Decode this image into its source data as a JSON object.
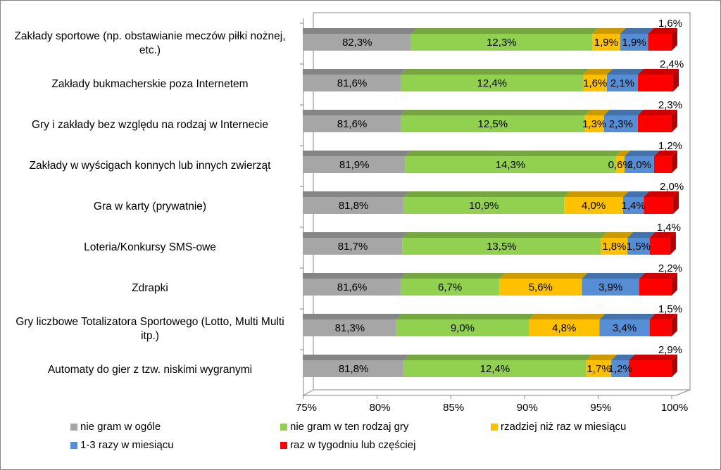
{
  "chart_data": {
    "type": "stacked-bar-horizontal-3d",
    "categories": [
      "Zakłady sportowe (np. obstawianie meczów piłki nożnej, etc.)",
      "Zakłady bukmacherskie poza Internetem",
      "Gry i zakłady bez względu na rodzaj w Internecie",
      "Zakłady w wyścigach konnych lub innych zwierząt",
      "Gra w karty (prywatnie)",
      "Loteria/Konkursy SMS-owe",
      "Zdrapki",
      "Gry liczbowe Totalizatora Sportowego (Lotto, Multi Multi itp.)",
      "Automaty do gier z tzw. niskimi wygranymi"
    ],
    "series": [
      {
        "name": "nie gram w ogóle",
        "color": "#a6a6a6",
        "values": [
          82.3,
          81.6,
          81.6,
          81.9,
          81.8,
          81.7,
          81.6,
          81.3,
          81.8
        ],
        "value_labels": [
          "82,3%",
          "81,6%",
          "81,6%",
          "81,9%",
          "81,8%",
          "81,7%",
          "81,6%",
          "81,3%",
          "81,8%"
        ]
      },
      {
        "name": "nie gram w ten rodzaj gry",
        "color": "#92d050",
        "values": [
          12.3,
          12.4,
          12.5,
          14.3,
          10.9,
          13.5,
          6.7,
          9.0,
          12.4
        ],
        "value_labels": [
          "12,3%",
          "12,4%",
          "12,5%",
          "14,3%",
          "10,9%",
          "13,5%",
          "6,7%",
          "9,0%",
          "12,4%"
        ]
      },
      {
        "name": "rzadziej niż raz w miesiącu",
        "color": "#ffc000",
        "values": [
          1.9,
          1.6,
          1.3,
          0.6,
          4.0,
          1.8,
          5.6,
          4.8,
          1.7
        ],
        "value_labels": [
          "1,9%",
          "1,6%",
          "1,3%",
          "0,6%",
          "4,0%",
          "1,8%",
          "5,6%",
          "4,8%",
          "1,7%"
        ]
      },
      {
        "name": "1-3 razy w miesiącu",
        "color": "#558ed5",
        "values": [
          1.9,
          2.1,
          2.3,
          2.0,
          1.4,
          1.5,
          3.9,
          3.4,
          1.2
        ],
        "value_labels": [
          "1,9%",
          "2,1%",
          "2,3%",
          "2,0%",
          "1,4%",
          "1,5%",
          "3,9%",
          "3,4%",
          "1,2%"
        ]
      },
      {
        "name": "raz w tygodniu lub częściej",
        "color": "#ff0000",
        "values": [
          1.6,
          2.4,
          2.3,
          1.2,
          2.0,
          1.4,
          2.2,
          1.5,
          2.9
        ],
        "value_labels": [
          "1,6%",
          "2,4%",
          "2,3%",
          "1,2%",
          "2,0%",
          "1,4%",
          "2,2%",
          "1,5%",
          "2,9%"
        ]
      }
    ],
    "xlim": [
      75,
      100
    ],
    "xticks": [
      {
        "value": 75,
        "label": "75%"
      },
      {
        "value": 80,
        "label": "80%"
      },
      {
        "value": 85,
        "label": "85%"
      },
      {
        "value": 90,
        "label": "90%"
      },
      {
        "value": 95,
        "label": "95%"
      },
      {
        "value": 100,
        "label": "100%"
      }
    ]
  }
}
